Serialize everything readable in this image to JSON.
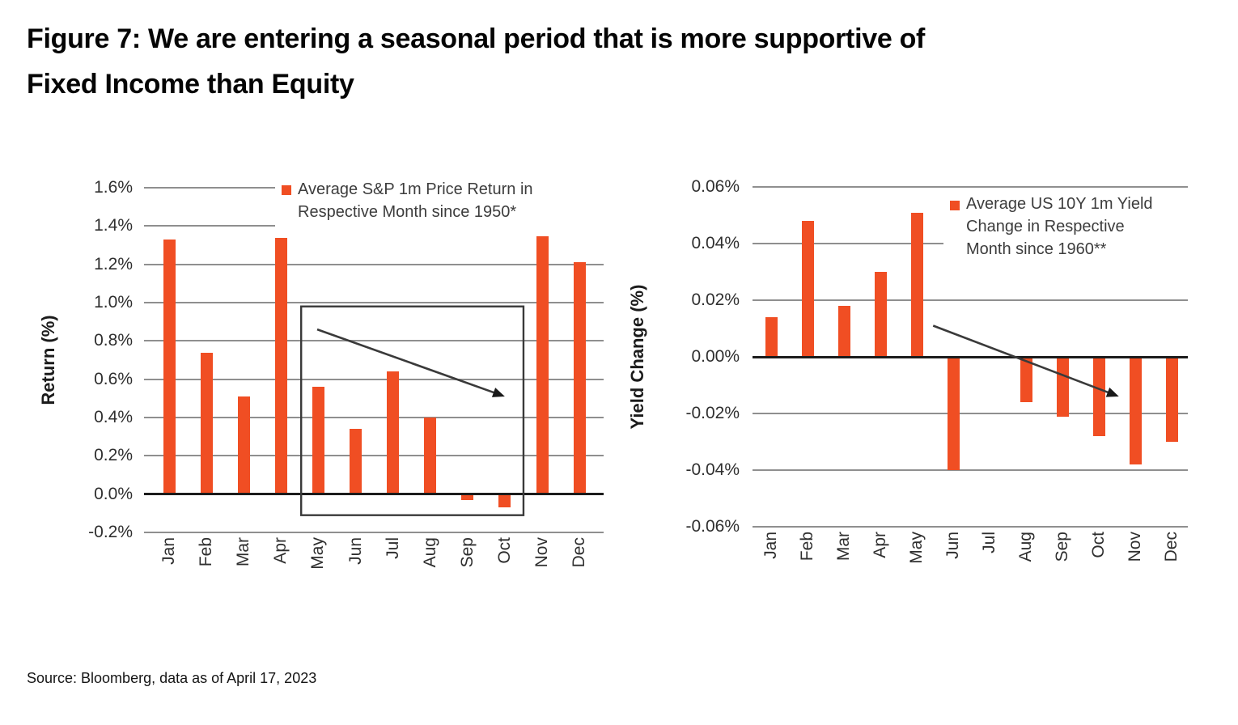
{
  "title": {
    "line1": "Figure 7: We are entering a seasonal period that is more supportive of",
    "line2": "Fixed Income than Equity"
  },
  "source": "Source: Bloomberg, data as of April 17, 2023",
  "colors": {
    "bar": "#f04e23",
    "gridline": "#8f8f8f",
    "zero_axis": "#1c1c1c",
    "annotation": "#3a3a3a",
    "legend_text": "#3d3d3d",
    "title_text": "#050505"
  },
  "chart_data": [
    {
      "type": "bar",
      "name": "sp500-seasonal-return",
      "legend_lines": [
        "Average S&P 1m Price Return in",
        "Respective Month since 1950*"
      ],
      "ylabel": "Return (%)",
      "categories": [
        "Jan",
        "Feb",
        "Mar",
        "Apr",
        "May",
        "Jun",
        "Jul",
        "Aug",
        "Sep",
        "Oct",
        "Nov",
        "Dec"
      ],
      "values": [
        1.33,
        0.74,
        0.51,
        1.34,
        0.56,
        0.34,
        0.64,
        0.4,
        -0.03,
        -0.07,
        1.36,
        1.21
      ],
      "ylim": [
        -0.2,
        1.6
      ],
      "ytick_step": 0.2,
      "tick_decimals": 1,
      "tick_suffix": "%",
      "grid": true,
      "legend_position": "top-right",
      "annotations": {
        "box": {
          "month_start": 3.54,
          "month_end": 9.5,
          "y_top": 0.98,
          "y_bottom": -0.11
        },
        "arrow": {
          "month0": 3.97,
          "y0": 0.86,
          "month1": 9.0,
          "y1": 0.51
        }
      }
    },
    {
      "type": "bar",
      "name": "us10y-seasonal-yield-change",
      "legend_lines": [
        "Average US 10Y 1m Yield",
        "Change in Respective",
        "Month since 1960**"
      ],
      "ylabel": "Yield Change (%)",
      "categories": [
        "Jan",
        "Feb",
        "Mar",
        "Apr",
        "May",
        "Jun",
        "Jul",
        "Aug",
        "Sep",
        "Oct",
        "Nov",
        "Dec"
      ],
      "values": [
        0.014,
        0.048,
        0.018,
        0.03,
        0.051,
        -0.04,
        0.0,
        -0.016,
        -0.021,
        -0.028,
        -0.038,
        -0.03
      ],
      "ylim": [
        -0.06,
        0.06
      ],
      "ytick_step": 0.02,
      "tick_decimals": 2,
      "tick_suffix": "%",
      "grid": true,
      "legend_position": "top-right",
      "annotations": {
        "arrow": {
          "month0": 4.45,
          "y0": 0.011,
          "month1": 9.55,
          "y1": -0.014
        }
      }
    }
  ]
}
